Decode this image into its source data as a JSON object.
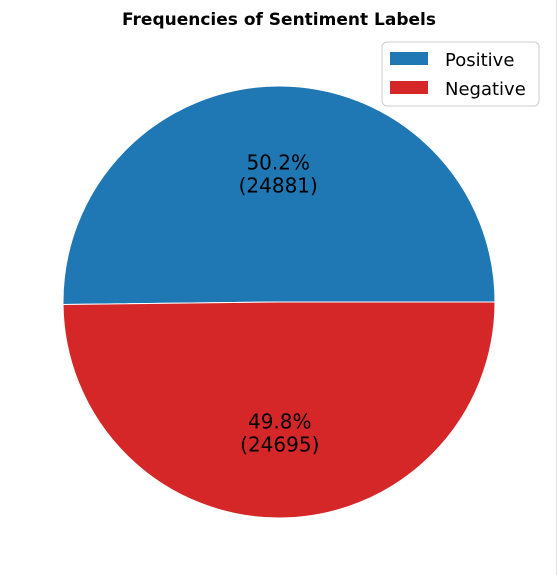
{
  "chart_data": {
    "type": "pie",
    "title": "Frequencies of Sentiment Labels",
    "start_angle_degrees": 0,
    "direction": "counterclockwise",
    "slices": [
      {
        "name": "Positive",
        "value": 24881,
        "percent": 50.2,
        "percent_label": "50.2%",
        "count_label": "(24881)",
        "color": "#1f77b4"
      },
      {
        "name": "Negative",
        "value": 24695,
        "percent": 49.8,
        "percent_label": "49.8%",
        "count_label": "(24695)",
        "color": "#d62728"
      }
    ],
    "legend": {
      "position": "top-right",
      "entries": [
        "Positive",
        "Negative"
      ]
    }
  }
}
